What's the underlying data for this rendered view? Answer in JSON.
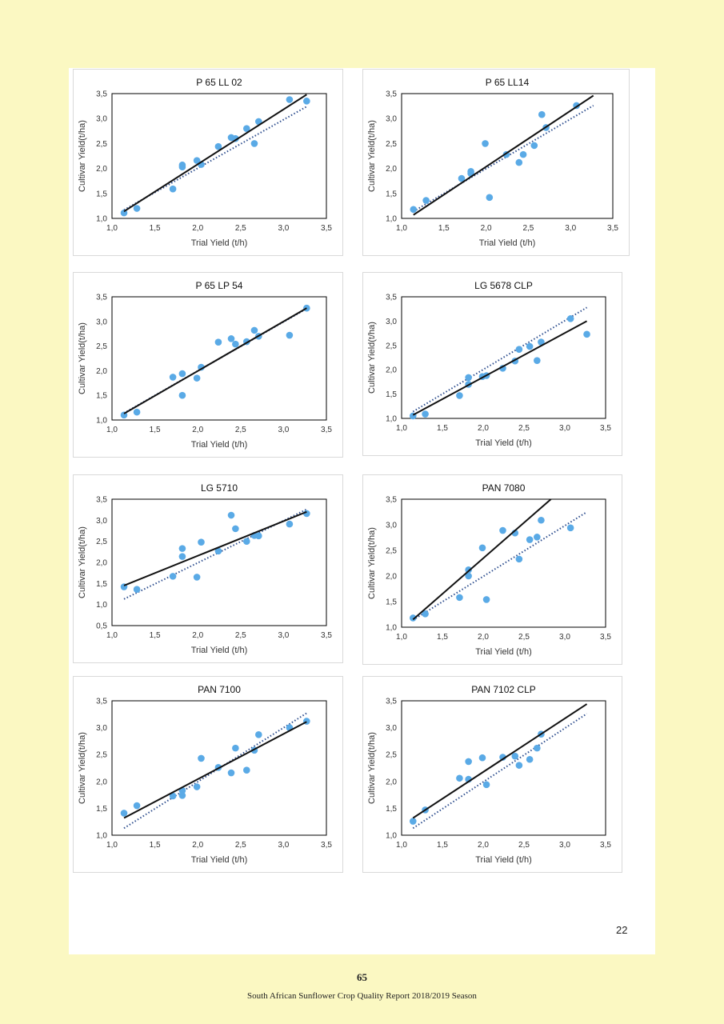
{
  "footer": {
    "page_number": "65",
    "report_title": "South African Sunflower Crop Quality Report 2018/2019 Season"
  },
  "inner_page_number": "22",
  "colors": {
    "points": "#5aaae6",
    "trend": "#111111",
    "reference": "#2f4f8f"
  },
  "chart_data": [
    {
      "type": "scatter",
      "title": "P 65 LL 02",
      "xlabel": "Trial Yield (t/h)",
      "ylabel": "Cultivar Yield(t/ha)",
      "xlim": [
        1.0,
        3.5
      ],
      "ylim": [
        1.0,
        3.5
      ],
      "xticks": [
        "1,0",
        "1,5",
        "2,0",
        "2,5",
        "3,0",
        "3,5"
      ],
      "yticks": [
        "1,0",
        "1,5",
        "2,0",
        "2,5",
        "3,0",
        "3,5"
      ],
      "x": [
        1.14,
        1.29,
        1.71,
        1.82,
        1.82,
        1.99,
        2.04,
        2.24,
        2.39,
        2.44,
        2.57,
        2.66,
        2.71,
        3.07,
        3.27
      ],
      "y": [
        1.11,
        1.2,
        1.59,
        2.03,
        2.07,
        2.16,
        2.08,
        2.44,
        2.62,
        2.6,
        2.8,
        2.5,
        2.94,
        3.38,
        3.35
      ],
      "trend": [
        [
          1.14,
          1.14
        ],
        [
          3.27,
          3.48
        ]
      ],
      "reference": [
        [
          1.14,
          1.17
        ],
        [
          3.27,
          3.24
        ]
      ]
    },
    {
      "type": "scatter",
      "title": "P 65 LL14",
      "xlabel": "Trial Yield (t/h)",
      "ylabel": "Cultivar Yield(t/ha)",
      "xlim": [
        1.0,
        3.5
      ],
      "ylim": [
        1.0,
        3.5
      ],
      "xticks": [
        "1,0",
        "1,5",
        "2,0",
        "2,5",
        "3,0",
        "3,5"
      ],
      "yticks": [
        "1,0",
        "1,5",
        "2,0",
        "2,5",
        "3,0",
        "3,5"
      ],
      "x": [
        1.14,
        1.29,
        1.71,
        1.82,
        1.82,
        1.99,
        2.04,
        2.24,
        2.39,
        2.44,
        2.57,
        2.66,
        2.71,
        3.07
      ],
      "y": [
        1.18,
        1.36,
        1.8,
        1.9,
        1.94,
        2.5,
        1.42,
        2.28,
        2.12,
        2.28,
        2.46,
        3.08,
        2.82,
        3.26
      ],
      "trend": [
        [
          1.14,
          1.07
        ],
        [
          3.27,
          3.46
        ]
      ],
      "reference": [
        [
          1.14,
          1.14
        ],
        [
          3.27,
          3.26
        ]
      ]
    },
    {
      "type": "scatter",
      "title": "P 65 LP 54",
      "xlabel": "Trial Yield (t/h)",
      "ylabel": "Cultivar Yield(t/ha)",
      "xlim": [
        1.0,
        3.5
      ],
      "ylim": [
        1.0,
        3.5
      ],
      "xticks": [
        "1,0",
        "1,5",
        "2,0",
        "2,5",
        "3,0",
        "3,5"
      ],
      "yticks": [
        "1,0",
        "1,5",
        "2,0",
        "2,5",
        "3,0",
        "3,5"
      ],
      "x": [
        1.14,
        1.29,
        1.71,
        1.82,
        1.82,
        1.99,
        2.04,
        2.24,
        2.39,
        2.44,
        2.57,
        2.66,
        2.71,
        3.07,
        3.27
      ],
      "y": [
        1.1,
        1.16,
        1.87,
        1.94,
        1.5,
        1.85,
        2.07,
        2.58,
        2.65,
        2.54,
        2.59,
        2.82,
        2.7,
        2.72,
        3.27
      ],
      "trend": [
        [
          1.14,
          1.13
        ],
        [
          3.27,
          3.27
        ]
      ],
      "reference": [
        [
          1.14,
          1.14
        ],
        [
          3.27,
          3.26
        ]
      ]
    },
    {
      "type": "scatter",
      "title": "LG 5678 CLP",
      "xlabel": "Trial Yield (t/h)",
      "ylabel": "Cultivar Yield(t/ha)",
      "xlim": [
        1.0,
        3.5
      ],
      "ylim": [
        1.0,
        3.5
      ],
      "xticks": [
        "1,0",
        "1,5",
        "2,0",
        "2,5",
        "3,0",
        "3,5"
      ],
      "yticks": [
        "1,0",
        "1,5",
        "2,0",
        "2,5",
        "3,0",
        "3,5"
      ],
      "x": [
        1.14,
        1.29,
        1.71,
        1.82,
        1.82,
        1.99,
        2.04,
        2.24,
        2.39,
        2.44,
        2.57,
        2.66,
        2.71,
        3.07,
        3.27
      ],
      "y": [
        1.05,
        1.09,
        1.47,
        1.84,
        1.7,
        1.86,
        1.88,
        2.03,
        2.18,
        2.42,
        2.48,
        2.19,
        2.57,
        3.05,
        2.73
      ],
      "trend": [
        [
          1.14,
          1.07
        ],
        [
          3.27,
          3.0
        ]
      ],
      "reference": [
        [
          1.14,
          1.14
        ],
        [
          3.27,
          3.28
        ]
      ]
    },
    {
      "type": "scatter",
      "title": "LG 5710",
      "xlabel": "Trial Yield (t/h)",
      "ylabel": "Cultivar Yield(t/ha)",
      "xlim": [
        1.0,
        3.5
      ],
      "ylim": [
        0.5,
        3.5
      ],
      "xticks": [
        "1,0",
        "1,5",
        "2,0",
        "2,5",
        "3,0",
        "3,5"
      ],
      "yticks": [
        "0,5",
        "1,0",
        "1,5",
        "2,0",
        "2,5",
        "3,0",
        "3,5"
      ],
      "x": [
        1.14,
        1.29,
        1.71,
        1.82,
        1.82,
        1.99,
        2.04,
        2.24,
        2.39,
        2.44,
        2.57,
        2.66,
        2.71,
        3.07,
        3.27
      ],
      "y": [
        1.42,
        1.36,
        1.67,
        2.33,
        2.14,
        1.65,
        2.48,
        2.27,
        3.12,
        2.8,
        2.5,
        2.64,
        2.63,
        2.91,
        3.16
      ],
      "trend": [
        [
          1.14,
          1.45
        ],
        [
          3.27,
          3.2
        ]
      ],
      "reference": [
        [
          1.14,
          1.13
        ],
        [
          3.27,
          3.26
        ]
      ]
    },
    {
      "type": "scatter",
      "title": "PAN 7080",
      "xlabel": "Trial Yield (t/h)",
      "ylabel": "Cultivar Yield(t/ha)",
      "xlim": [
        1.0,
        3.5
      ],
      "ylim": [
        1.0,
        3.5
      ],
      "xticks": [
        "1,0",
        "1,5",
        "2,0",
        "2,5",
        "3,0",
        "3,5"
      ],
      "yticks": [
        "1,0",
        "1,5",
        "2,0",
        "2,5",
        "3,0",
        "3,5"
      ],
      "x": [
        1.14,
        1.29,
        1.71,
        1.82,
        1.82,
        1.99,
        2.04,
        2.24,
        2.39,
        2.44,
        2.57,
        2.66,
        2.71,
        3.07
      ],
      "y": [
        1.18,
        1.26,
        1.58,
        2.12,
        2.0,
        2.55,
        1.54,
        2.89,
        2.84,
        2.33,
        2.71,
        2.76,
        3.09,
        2.94
      ],
      "trend": [
        [
          1.14,
          1.15
        ],
        [
          2.83,
          3.5
        ]
      ],
      "reference": [
        [
          1.14,
          1.14
        ],
        [
          3.27,
          3.25
        ]
      ]
    },
    {
      "type": "scatter",
      "title": "PAN 7100",
      "xlabel": "Trial Yield (t/h)",
      "ylabel": "Cultivar Yield(t/ha)",
      "xlim": [
        1.0,
        3.5
      ],
      "ylim": [
        1.0,
        3.5
      ],
      "xticks": [
        "1,0",
        "1,5",
        "2,0",
        "2,5",
        "3,0",
        "3,5"
      ],
      "yticks": [
        "1,0",
        "1,5",
        "2,0",
        "2,5",
        "3,0",
        "3,5"
      ],
      "x": [
        1.14,
        1.29,
        1.71,
        1.82,
        1.82,
        1.99,
        2.04,
        2.24,
        2.39,
        2.44,
        2.57,
        2.66,
        2.71,
        3.07,
        3.27
      ],
      "y": [
        1.41,
        1.55,
        1.73,
        1.83,
        1.74,
        1.9,
        2.43,
        2.26,
        2.16,
        2.62,
        2.21,
        2.58,
        2.87,
        3.0,
        3.12
      ],
      "trend": [
        [
          1.14,
          1.32
        ],
        [
          3.27,
          3.11
        ]
      ],
      "reference": [
        [
          1.14,
          1.13
        ],
        [
          3.27,
          3.27
        ]
      ]
    },
    {
      "type": "scatter",
      "title": "PAN 7102 CLP",
      "xlabel": "Trial Yield (t/h)",
      "ylabel": "Cultivar Yield(t/ha)",
      "xlim": [
        1.0,
        3.5
      ],
      "ylim": [
        1.0,
        3.5
      ],
      "xticks": [
        "1,0",
        "1,5",
        "2,0",
        "2,5",
        "3,0",
        "3,5"
      ],
      "yticks": [
        "1,0",
        "1,5",
        "2,0",
        "2,5",
        "3,0",
        "3,5"
      ],
      "x": [
        1.14,
        1.29,
        1.71,
        1.82,
        1.82,
        1.99,
        2.04,
        2.24,
        2.39,
        2.44,
        2.57,
        2.66,
        2.71
      ],
      "y": [
        1.26,
        1.47,
        2.06,
        2.37,
        2.04,
        2.44,
        1.94,
        2.45,
        2.47,
        2.3,
        2.41,
        2.62,
        2.88
      ],
      "trend": [
        [
          1.14,
          1.32
        ],
        [
          3.27,
          3.44
        ]
      ],
      "reference": [
        [
          1.14,
          1.13
        ],
        [
          3.27,
          3.26
        ]
      ]
    }
  ]
}
